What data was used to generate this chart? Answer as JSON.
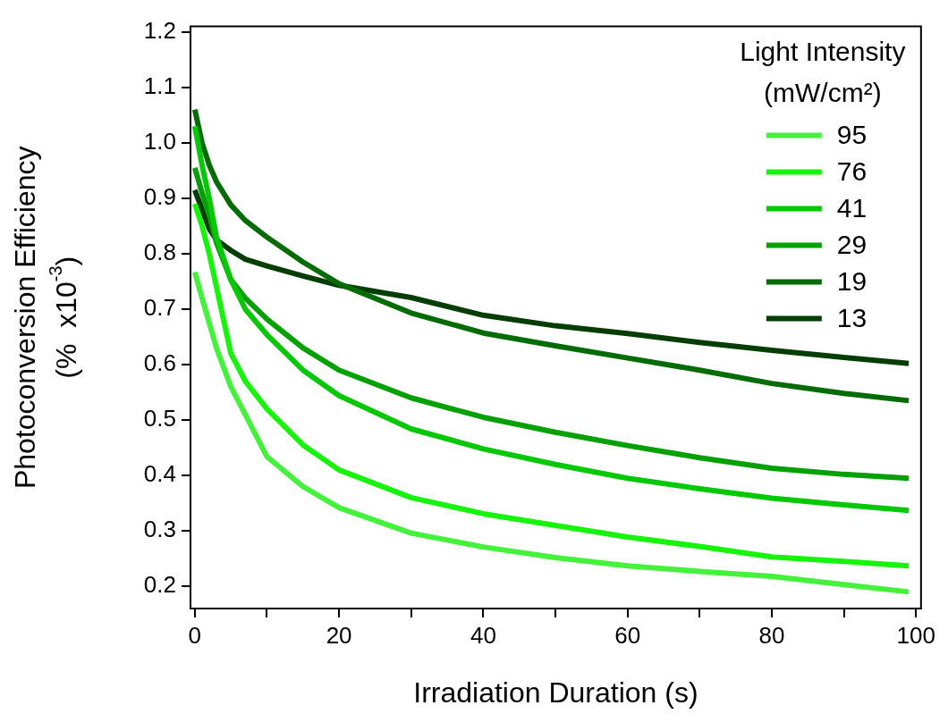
{
  "chart_data": {
    "type": "line",
    "xlabel": "Irradiation Duration (s)",
    "ylabel": "Photoconversion Efficiency\n(%  x10$^{-3}$)",
    "legend_title": "Light Intensity\n(mW/cm²)",
    "legend": "top right",
    "marker": "none",
    "line_style": "solid",
    "x": [
      0,
      1,
      2,
      3,
      5,
      7,
      10,
      15,
      20,
      30,
      40,
      50,
      60,
      70,
      80,
      90,
      99
    ],
    "xlim": [
      -0.6,
      100.7
    ],
    "xticks": [
      0,
      {
        "value": 10,
        "label": null
      },
      20,
      {
        "value": 30,
        "label": null
      },
      40,
      {
        "value": 50,
        "label": null
      },
      60,
      {
        "value": 70,
        "label": null
      },
      80,
      {
        "value": 90,
        "label": null
      },
      100
    ],
    "ylim": [
      0.16,
      1.21
    ],
    "yticks": [
      0.2,
      0.3,
      0.4,
      0.5,
      0.6,
      0.7,
      0.8,
      0.9,
      {
        "value": 1.0,
        "label": "1.0"
      },
      1.1,
      1.2
    ],
    "series": [
      {
        "name": "95",
        "color": "#44f23c",
        "values": [
          0.767,
          0.72,
          0.675,
          0.63,
          0.56,
          0.51,
          0.434,
          0.38,
          0.342,
          0.296,
          0.271,
          0.252,
          0.237,
          0.227,
          0.218,
          0.203,
          0.19
        ]
      },
      {
        "name": "76",
        "color": "#16f40c",
        "values": [
          0.89,
          0.85,
          0.8,
          0.74,
          0.62,
          0.57,
          0.52,
          0.455,
          0.41,
          0.36,
          0.331,
          0.31,
          0.289,
          0.272,
          0.253,
          0.245,
          0.237
        ]
      },
      {
        "name": "41",
        "color": "#06c806",
        "values": [
          1.03,
          0.96,
          0.9,
          0.83,
          0.753,
          0.7,
          0.654,
          0.59,
          0.544,
          0.484,
          0.448,
          0.42,
          0.395,
          0.376,
          0.359,
          0.347,
          0.337
        ]
      },
      {
        "name": "29",
        "color": "#04a004",
        "values": [
          0.955,
          0.91,
          0.87,
          0.82,
          0.753,
          0.72,
          0.682,
          0.63,
          0.59,
          0.54,
          0.505,
          0.478,
          0.454,
          0.432,
          0.413,
          0.402,
          0.395
        ]
      },
      {
        "name": "19",
        "color": "#056c05",
        "values": [
          1.06,
          1.0,
          0.96,
          0.93,
          0.888,
          0.86,
          0.83,
          0.785,
          0.746,
          0.693,
          0.657,
          0.634,
          0.612,
          0.59,
          0.566,
          0.548,
          0.535
        ]
      },
      {
        "name": "13",
        "color": "#053e05",
        "values": [
          0.915,
          0.88,
          0.845,
          0.825,
          0.806,
          0.79,
          0.778,
          0.76,
          0.743,
          0.721,
          0.689,
          0.67,
          0.656,
          0.64,
          0.626,
          0.613,
          0.602
        ]
      }
    ]
  }
}
